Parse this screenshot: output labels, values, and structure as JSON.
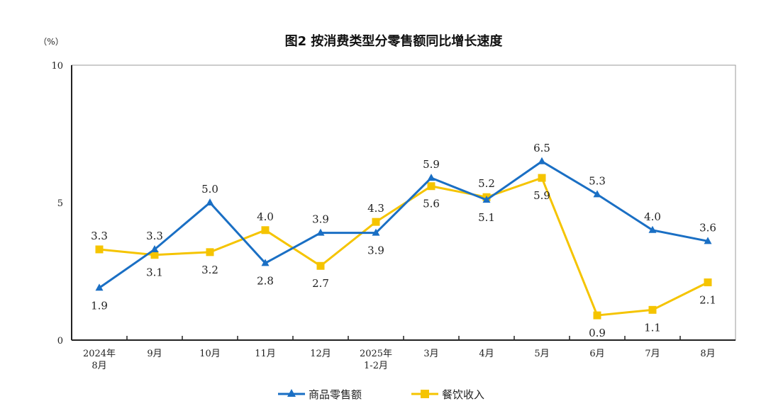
{
  "chart_data": {
    "type": "line",
    "title": "图2 按消费类型分零售额同比增长速度",
    "ylabel": "（%）",
    "ylim": [
      0,
      10
    ],
    "yticks": [
      0,
      5,
      10
    ],
    "categories": [
      [
        "2024年",
        "8月"
      ],
      [
        "9月"
      ],
      [
        "10月"
      ],
      [
        "11月"
      ],
      [
        "12月"
      ],
      [
        "2025年",
        "1-2月"
      ],
      [
        "3月"
      ],
      [
        "4月"
      ],
      [
        "5月"
      ],
      [
        "6月"
      ],
      [
        "7月"
      ],
      [
        "8月"
      ]
    ],
    "series": [
      {
        "name": "商品零售额",
        "color": "#1a6fc4",
        "marker": "triangle",
        "values": [
          1.9,
          3.3,
          5.0,
          2.8,
          3.9,
          3.9,
          5.9,
          5.1,
          6.5,
          5.3,
          4.0,
          3.6
        ]
      },
      {
        "name": "餐饮收入",
        "color": "#f5c400",
        "marker": "square",
        "values": [
          3.3,
          3.1,
          3.2,
          4.0,
          2.7,
          4.3,
          5.6,
          5.2,
          5.9,
          0.9,
          1.1,
          2.1
        ]
      }
    ],
    "legend": "bottom",
    "grid": false
  }
}
